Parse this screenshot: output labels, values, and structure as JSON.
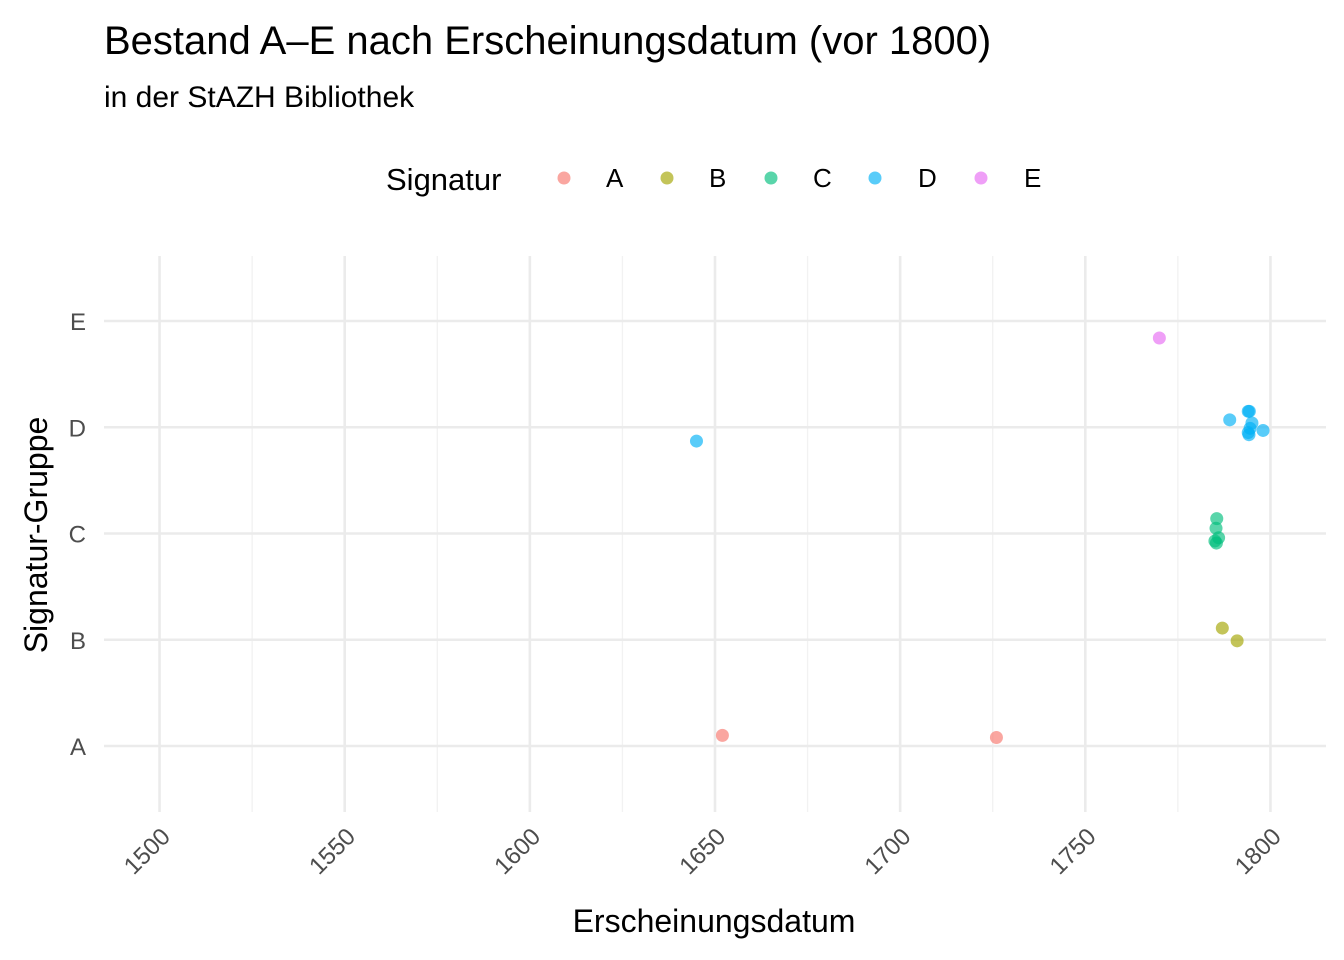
{
  "chart_data": {
    "type": "scatter",
    "title": "Bestand A–E nach Erscheinungsdatum (vor 1800)",
    "subtitle": "in der StAZH Bibliothek",
    "xlabel": "Erscheinungsdatum",
    "ylabel": "Signatur-Gruppe",
    "legend_title": "Signatur",
    "legend_position": "top",
    "grid": true,
    "xlim": [
      1485,
      1815
    ],
    "xticks": [
      "1500",
      "1550",
      "1600",
      "1650",
      "1700",
      "1750",
      "1800"
    ],
    "y_categories": [
      "A",
      "B",
      "C",
      "D",
      "E"
    ],
    "series": [
      {
        "name": "A",
        "color": "#F8766D",
        "points": [
          [
            1652,
            0.1
          ],
          [
            1726,
            0.08
          ]
        ]
      },
      {
        "name": "B",
        "color": "#A3A500",
        "points": [
          [
            1787,
            0.11
          ],
          [
            1791,
            -0.01
          ]
        ]
      },
      {
        "name": "C",
        "color": "#00BF7D",
        "points": [
          [
            1785.5,
            0.14
          ],
          [
            1785.3,
            0.05
          ],
          [
            1786,
            -0.04
          ],
          [
            1785,
            -0.07
          ],
          [
            1785.4,
            -0.09
          ]
        ]
      },
      {
        "name": "D",
        "color": "#00B0F6",
        "points": [
          [
            1645,
            -0.13
          ],
          [
            1789,
            0.07
          ],
          [
            1794,
            0.15
          ],
          [
            1794.3,
            0.15
          ],
          [
            1795,
            0.04
          ],
          [
            1794.5,
            -0.01
          ],
          [
            1794,
            -0.05
          ],
          [
            1794.2,
            -0.07
          ],
          [
            1798,
            -0.03
          ]
        ]
      },
      {
        "name": "E",
        "color": "#E76BF3",
        "points": [
          [
            1770,
            -0.16
          ]
        ]
      }
    ]
  }
}
